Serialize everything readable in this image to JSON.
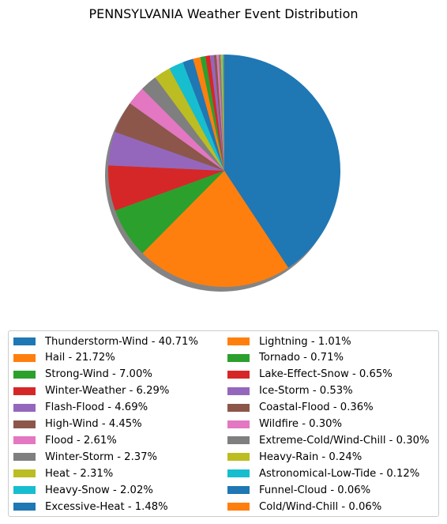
{
  "chart_data": {
    "type": "pie",
    "title": "PENNSYLVANIA Weather Event Distribution",
    "slices": [
      {
        "label": "Thunderstorm-Wind",
        "value": 40.71,
        "color": "#1f77b4"
      },
      {
        "label": "Hail",
        "value": 21.72,
        "color": "#ff7f0e"
      },
      {
        "label": "Strong-Wind",
        "value": 7.0,
        "color": "#2ca02c"
      },
      {
        "label": "Winter-Weather",
        "value": 6.29,
        "color": "#d62728"
      },
      {
        "label": "Flash-Flood",
        "value": 4.69,
        "color": "#9467bd"
      },
      {
        "label": "High-Wind",
        "value": 4.45,
        "color": "#8c564b"
      },
      {
        "label": "Flood",
        "value": 2.61,
        "color": "#e377c2"
      },
      {
        "label": "Winter-Storm",
        "value": 2.37,
        "color": "#7f7f7f"
      },
      {
        "label": "Heat",
        "value": 2.31,
        "color": "#bcbd22"
      },
      {
        "label": "Heavy-Snow",
        "value": 2.02,
        "color": "#17becf"
      },
      {
        "label": "Excessive-Heat",
        "value": 1.48,
        "color": "#1f77b4"
      },
      {
        "label": "Lightning",
        "value": 1.01,
        "color": "#ff7f0e"
      },
      {
        "label": "Tornado",
        "value": 0.71,
        "color": "#2ca02c"
      },
      {
        "label": "Lake-Effect-Snow",
        "value": 0.65,
        "color": "#d62728"
      },
      {
        "label": "Ice-Storm",
        "value": 0.53,
        "color": "#9467bd"
      },
      {
        "label": "Coastal-Flood",
        "value": 0.36,
        "color": "#8c564b"
      },
      {
        "label": "Wildfire",
        "value": 0.3,
        "color": "#e377c2"
      },
      {
        "label": "Extreme-Cold/Wind-Chill",
        "value": 0.3,
        "color": "#7f7f7f"
      },
      {
        "label": "Heavy-Rain",
        "value": 0.24,
        "color": "#bcbd22"
      },
      {
        "label": "Astronomical-Low-Tide",
        "value": 0.12,
        "color": "#17becf"
      },
      {
        "label": "Funnel-Cloud",
        "value": 0.06,
        "color": "#1f77b4"
      },
      {
        "label": "Cold/Wind-Chill",
        "value": 0.06,
        "color": "#ff7f0e"
      }
    ],
    "legend_entries": [
      "Thunderstorm-Wind - 40.71%",
      "Hail - 21.72%",
      "Strong-Wind - 7.00%",
      "Winter-Weather - 6.29%",
      "Flash-Flood - 4.69%",
      "High-Wind - 4.45%",
      "Flood - 2.61%",
      "Winter-Storm - 2.37%",
      "Heat - 2.31%",
      "Heavy-Snow - 2.02%",
      "Excessive-Heat - 1.48%",
      "Lightning - 1.01%",
      "Tornado - 0.71%",
      "Lake-Effect-Snow - 0.65%",
      "Ice-Storm - 0.53%",
      "Coastal-Flood - 0.36%",
      "Wildfire - 0.30%",
      "Extreme-Cold/Wind-Chill - 0.30%",
      "Heavy-Rain - 0.24%",
      "Astronomical-Low-Tide - 0.12%",
      "Funnel-Cloud - 0.06%",
      "Cold/Wind-Chill - 0.06%"
    ],
    "start_angle_deg": 90,
    "direction": "clockwise",
    "shadow": true,
    "legend_placement": "bottom",
    "legend_columns": 2
  }
}
